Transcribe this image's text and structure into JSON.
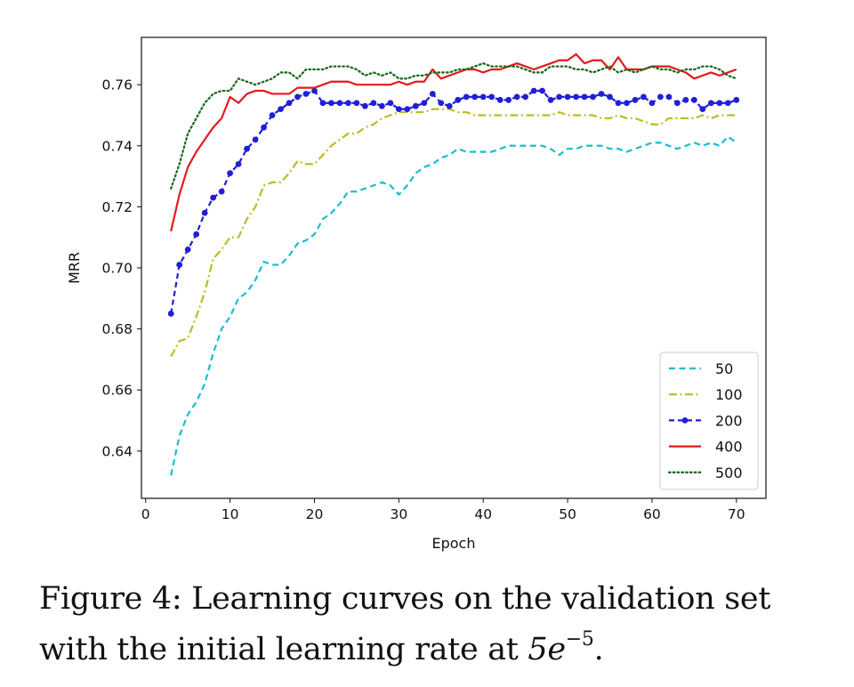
{
  "chart_data": {
    "type": "line",
    "xlabel": "Epoch",
    "ylabel": "MRR",
    "xlim": [
      -0.5,
      73.5
    ],
    "ylim": [
      0.6245,
      0.7755
    ],
    "xticks": [
      0,
      10,
      20,
      30,
      40,
      50,
      60,
      70
    ],
    "xtick_labels": [
      "0",
      "10",
      "20",
      "30",
      "40",
      "50",
      "60",
      "70"
    ],
    "yticks": [
      0.64,
      0.66,
      0.68,
      0.7,
      0.72,
      0.74,
      0.76
    ],
    "ytick_labels": [
      "0.64",
      "0.66",
      "0.68",
      "0.70",
      "0.72",
      "0.74",
      "0.76"
    ],
    "legend_position": "lower-right",
    "grid": false,
    "x": [
      3,
      4,
      5,
      6,
      7,
      8,
      9,
      10,
      11,
      12,
      13,
      14,
      15,
      16,
      17,
      18,
      19,
      20,
      21,
      22,
      23,
      24,
      25,
      26,
      27,
      28,
      29,
      30,
      31,
      32,
      33,
      34,
      35,
      36,
      37,
      38,
      39,
      40,
      41,
      42,
      43,
      44,
      45,
      46,
      47,
      48,
      49,
      50,
      51,
      52,
      53,
      54,
      55,
      56,
      57,
      58,
      59,
      60,
      61,
      62,
      63,
      64,
      65,
      66,
      67,
      68,
      69,
      70
    ],
    "series": [
      {
        "name": "50",
        "color": "#17becf",
        "style": "dashed",
        "values": [
          0.632,
          0.645,
          0.652,
          0.656,
          0.662,
          0.672,
          0.68,
          0.684,
          0.69,
          0.692,
          0.696,
          0.702,
          0.701,
          0.701,
          0.704,
          0.708,
          0.709,
          0.711,
          0.716,
          0.718,
          0.721,
          0.725,
          0.725,
          0.726,
          0.727,
          0.728,
          0.727,
          0.724,
          0.727,
          0.731,
          0.733,
          0.734,
          0.736,
          0.737,
          0.739,
          0.738,
          0.738,
          0.738,
          0.738,
          0.739,
          0.74,
          0.74,
          0.74,
          0.74,
          0.74,
          0.739,
          0.737,
          0.739,
          0.739,
          0.74,
          0.74,
          0.74,
          0.739,
          0.739,
          0.738,
          0.739,
          0.74,
          0.741,
          0.741,
          0.74,
          0.739,
          0.74,
          0.741,
          0.74,
          0.741,
          0.74,
          0.743,
          0.741
        ]
      },
      {
        "name": "100",
        "color": "#bcbd22",
        "style": "dashdot",
        "values": [
          0.671,
          0.676,
          0.677,
          0.684,
          0.692,
          0.703,
          0.706,
          0.71,
          0.71,
          0.716,
          0.72,
          0.727,
          0.728,
          0.728,
          0.731,
          0.735,
          0.734,
          0.734,
          0.737,
          0.74,
          0.742,
          0.744,
          0.744,
          0.746,
          0.747,
          0.749,
          0.75,
          0.751,
          0.751,
          0.751,
          0.751,
          0.752,
          0.752,
          0.752,
          0.751,
          0.751,
          0.75,
          0.75,
          0.75,
          0.75,
          0.75,
          0.75,
          0.75,
          0.75,
          0.75,
          0.75,
          0.751,
          0.75,
          0.75,
          0.75,
          0.75,
          0.749,
          0.749,
          0.75,
          0.749,
          0.749,
          0.748,
          0.747,
          0.747,
          0.749,
          0.749,
          0.749,
          0.749,
          0.75,
          0.749,
          0.75,
          0.75,
          0.75
        ]
      },
      {
        "name": "200",
        "color": "#1f1fd6",
        "style": "dashed-dots",
        "values": [
          0.685,
          0.701,
          0.706,
          0.711,
          0.718,
          0.723,
          0.725,
          0.731,
          0.734,
          0.739,
          0.742,
          0.746,
          0.75,
          0.752,
          0.754,
          0.756,
          0.757,
          0.758,
          0.754,
          0.754,
          0.754,
          0.754,
          0.754,
          0.753,
          0.754,
          0.753,
          0.754,
          0.752,
          0.752,
          0.753,
          0.754,
          0.757,
          0.754,
          0.753,
          0.755,
          0.756,
          0.756,
          0.756,
          0.756,
          0.755,
          0.755,
          0.756,
          0.756,
          0.758,
          0.758,
          0.755,
          0.756,
          0.756,
          0.756,
          0.756,
          0.756,
          0.757,
          0.756,
          0.754,
          0.754,
          0.755,
          0.756,
          0.754,
          0.756,
          0.756,
          0.754,
          0.755,
          0.755,
          0.752,
          0.754,
          0.754,
          0.754,
          0.755
        ]
      },
      {
        "name": "400",
        "color": "#e31a1c",
        "style": "solid",
        "values": [
          0.712,
          0.724,
          0.733,
          0.738,
          0.742,
          0.746,
          0.749,
          0.756,
          0.754,
          0.757,
          0.758,
          0.758,
          0.757,
          0.757,
          0.757,
          0.759,
          0.759,
          0.759,
          0.76,
          0.761,
          0.761,
          0.761,
          0.76,
          0.76,
          0.76,
          0.76,
          0.76,
          0.761,
          0.76,
          0.761,
          0.761,
          0.765,
          0.762,
          0.763,
          0.764,
          0.765,
          0.765,
          0.764,
          0.765,
          0.765,
          0.766,
          0.767,
          0.766,
          0.765,
          0.766,
          0.767,
          0.768,
          0.768,
          0.77,
          0.767,
          0.768,
          0.768,
          0.765,
          0.769,
          0.765,
          0.765,
          0.765,
          0.766,
          0.766,
          0.766,
          0.765,
          0.764,
          0.762,
          0.763,
          0.764,
          0.763,
          0.764,
          0.765
        ]
      },
      {
        "name": "500",
        "color": "#1a6b1a",
        "style": "dotted",
        "values": [
          0.726,
          0.734,
          0.744,
          0.749,
          0.754,
          0.757,
          0.758,
          0.758,
          0.762,
          0.761,
          0.76,
          0.761,
          0.762,
          0.764,
          0.764,
          0.762,
          0.765,
          0.765,
          0.765,
          0.766,
          0.766,
          0.766,
          0.765,
          0.763,
          0.764,
          0.763,
          0.764,
          0.762,
          0.762,
          0.763,
          0.763,
          0.764,
          0.764,
          0.764,
          0.765,
          0.765,
          0.766,
          0.767,
          0.766,
          0.766,
          0.766,
          0.766,
          0.765,
          0.764,
          0.764,
          0.766,
          0.766,
          0.766,
          0.765,
          0.765,
          0.764,
          0.765,
          0.766,
          0.764,
          0.765,
          0.764,
          0.765,
          0.766,
          0.765,
          0.765,
          0.764,
          0.765,
          0.765,
          0.766,
          0.766,
          0.765,
          0.763,
          0.762
        ]
      }
    ]
  },
  "caption": {
    "lead": "Figure 4: Learning curves on the validation set with the initial learning rate at ",
    "math_base": "5e",
    "math_exponent": "−5",
    "trail": "."
  }
}
